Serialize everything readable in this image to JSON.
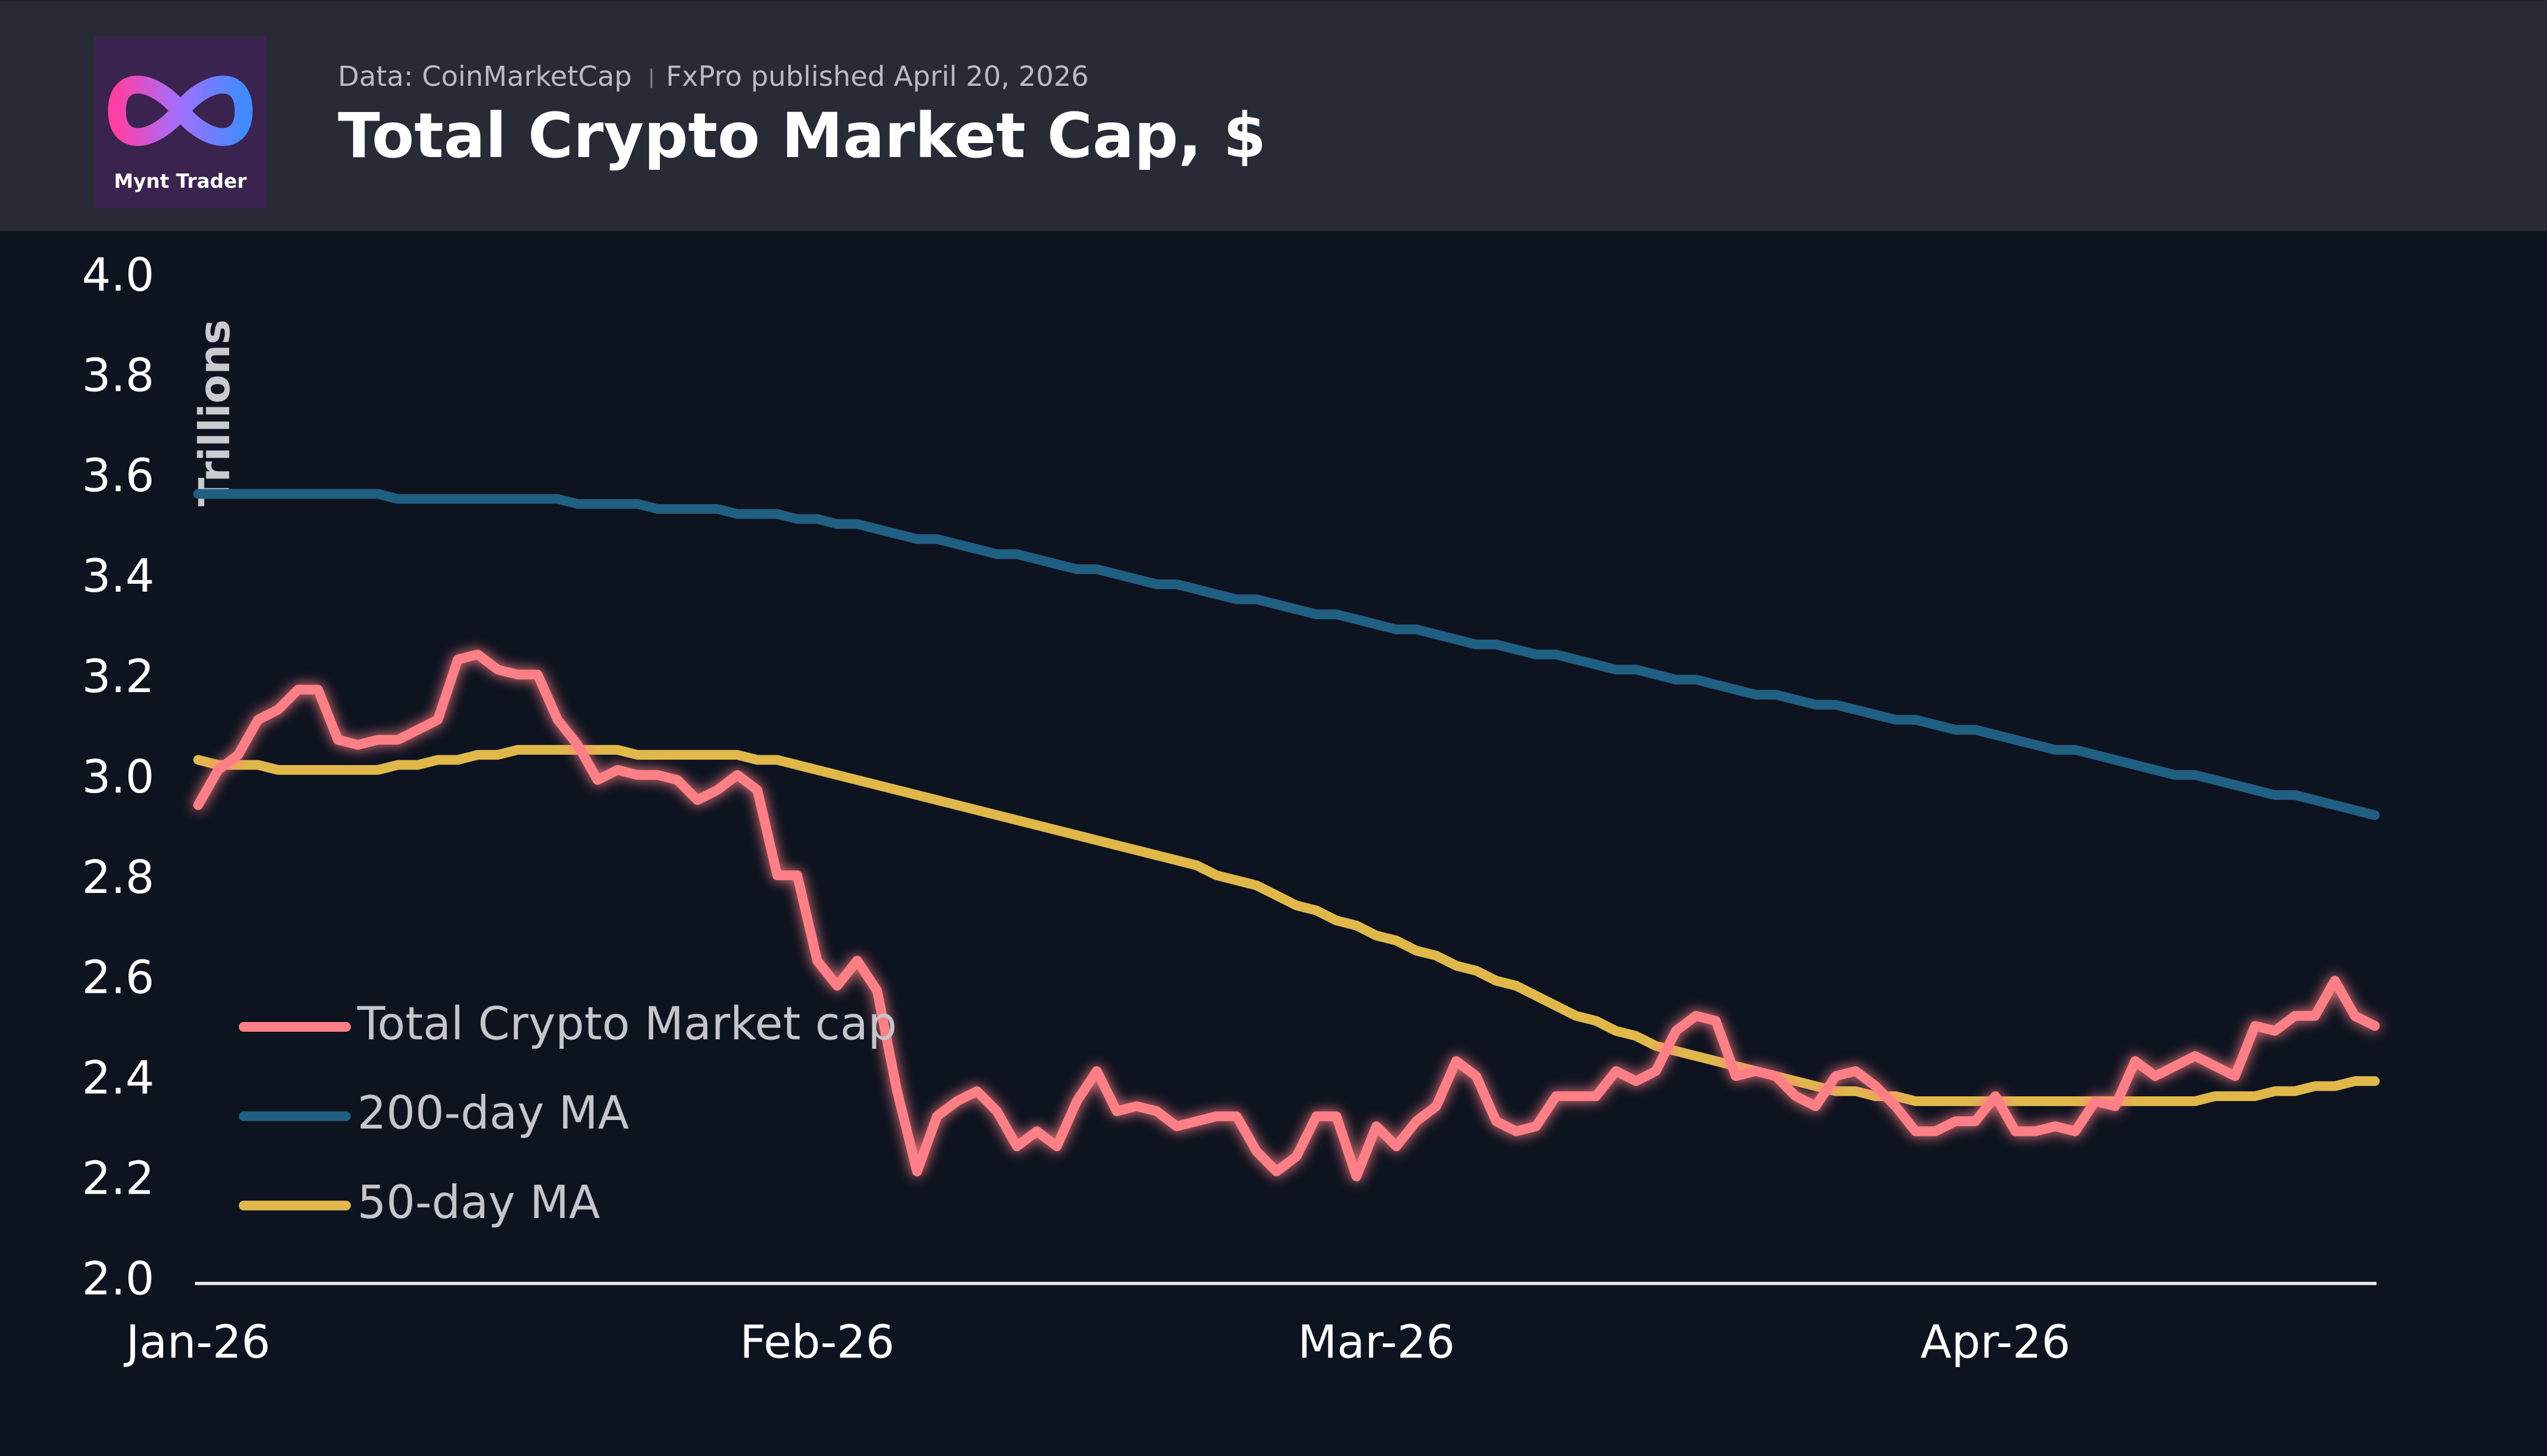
{
  "header": {
    "logo_text": "Mynt Trader",
    "source": "Data: CoinMarketCap",
    "published": "FxPro published April 20, 2026"
  },
  "chart_data": {
    "type": "line",
    "title": "Total Crypto Market Cap, $",
    "y_label": "Trillions",
    "categories": [
      "Jan-26",
      null,
      null,
      null,
      null,
      null,
      null,
      null,
      null,
      null,
      null,
      null,
      null,
      null,
      null,
      null,
      null,
      null,
      null,
      null,
      null,
      null,
      null,
      null,
      null,
      null,
      null,
      null,
      null,
      null,
      null,
      "Feb-26",
      null,
      null,
      null,
      null,
      null,
      null,
      null,
      null,
      null,
      null,
      null,
      null,
      null,
      null,
      null,
      null,
      null,
      null,
      null,
      null,
      null,
      null,
      null,
      null,
      null,
      null,
      null,
      "Mar-26",
      null,
      null,
      null,
      null,
      null,
      null,
      null,
      null,
      null,
      null,
      null,
      null,
      null,
      null,
      null,
      null,
      null,
      null,
      null,
      null,
      null,
      null,
      null,
      null,
      null,
      null,
      null,
      null,
      null,
      null,
      "Apr-26",
      null,
      null,
      null,
      null,
      null,
      null,
      null,
      null,
      null,
      null,
      null,
      null,
      null,
      null,
      null,
      null,
      null,
      null,
      null
    ],
    "series": [
      {
        "name": "Total Crypto Market cap",
        "color": "#ff7f86",
        "values": [
          2.95,
          3.02,
          3.05,
          3.12,
          3.14,
          3.18,
          3.18,
          3.08,
          3.07,
          3.08,
          3.08,
          3.1,
          3.12,
          3.24,
          3.25,
          3.22,
          3.21,
          3.21,
          3.12,
          3.07,
          3.0,
          3.02,
          3.01,
          3.01,
          3.0,
          2.96,
          2.98,
          3.01,
          2.98,
          2.81,
          2.81,
          2.64,
          2.59,
          2.64,
          2.58,
          2.38,
          2.22,
          2.33,
          2.36,
          2.38,
          2.34,
          2.27,
          2.3,
          2.27,
          2.36,
          2.42,
          2.34,
          2.35,
          2.34,
          2.31,
          2.32,
          2.33,
          2.33,
          2.26,
          2.22,
          2.25,
          2.33,
          2.33,
          2.21,
          2.31,
          2.27,
          2.32,
          2.35,
          2.44,
          2.41,
          2.32,
          2.3,
          2.31,
          2.37,
          2.37,
          2.37,
          2.42,
          2.4,
          2.42,
          2.5,
          2.53,
          2.52,
          2.41,
          2.42,
          2.41,
          2.37,
          2.35,
          2.41,
          2.42,
          2.39,
          2.35,
          2.3,
          2.3,
          2.32,
          2.32,
          2.37,
          2.3,
          2.3,
          2.31,
          2.3,
          2.36,
          2.35,
          2.44,
          2.41,
          2.43,
          2.45,
          2.43,
          2.41,
          2.51,
          2.5,
          2.53,
          2.53,
          2.6,
          2.53,
          2.51
        ]
      },
      {
        "name": "200-day MA",
        "color": "#1f5f82",
        "values": [
          3.57,
          3.57,
          3.57,
          3.57,
          3.57,
          3.57,
          3.57,
          3.57,
          3.57,
          3.57,
          3.56,
          3.56,
          3.56,
          3.56,
          3.56,
          3.56,
          3.56,
          3.56,
          3.56,
          3.55,
          3.55,
          3.55,
          3.55,
          3.54,
          3.54,
          3.54,
          3.54,
          3.53,
          3.53,
          3.53,
          3.52,
          3.52,
          3.51,
          3.51,
          3.5,
          3.49,
          3.48,
          3.48,
          3.47,
          3.46,
          3.45,
          3.45,
          3.44,
          3.43,
          3.42,
          3.42,
          3.41,
          3.4,
          3.39,
          3.39,
          3.38,
          3.37,
          3.36,
          3.36,
          3.35,
          3.34,
          3.33,
          3.33,
          3.32,
          3.31,
          3.3,
          3.3,
          3.29,
          3.28,
          3.27,
          3.27,
          3.26,
          3.25,
          3.25,
          3.24,
          3.23,
          3.22,
          3.22,
          3.21,
          3.2,
          3.2,
          3.19,
          3.18,
          3.17,
          3.17,
          3.16,
          3.15,
          3.15,
          3.14,
          3.13,
          3.12,
          3.12,
          3.11,
          3.1,
          3.1,
          3.09,
          3.08,
          3.07,
          3.06,
          3.06,
          3.05,
          3.04,
          3.03,
          3.02,
          3.01,
          3.01,
          3.0,
          2.99,
          2.98,
          2.97,
          2.97,
          2.96,
          2.95,
          2.94,
          2.93
        ]
      },
      {
        "name": "50-day MA",
        "color": "#e0b84a",
        "values": [
          3.04,
          3.03,
          3.03,
          3.03,
          3.02,
          3.02,
          3.02,
          3.02,
          3.02,
          3.02,
          3.03,
          3.03,
          3.04,
          3.04,
          3.05,
          3.05,
          3.06,
          3.06,
          3.06,
          3.06,
          3.06,
          3.06,
          3.05,
          3.05,
          3.05,
          3.05,
          3.05,
          3.05,
          3.04,
          3.04,
          3.03,
          3.02,
          3.01,
          3.0,
          2.99,
          2.98,
          2.97,
          2.96,
          2.95,
          2.94,
          2.93,
          2.92,
          2.91,
          2.9,
          2.89,
          2.88,
          2.87,
          2.86,
          2.85,
          2.84,
          2.83,
          2.81,
          2.8,
          2.79,
          2.77,
          2.75,
          2.74,
          2.72,
          2.71,
          2.69,
          2.68,
          2.66,
          2.65,
          2.63,
          2.62,
          2.6,
          2.59,
          2.57,
          2.55,
          2.53,
          2.52,
          2.5,
          2.49,
          2.47,
          2.46,
          2.45,
          2.44,
          2.43,
          2.42,
          2.41,
          2.4,
          2.39,
          2.38,
          2.38,
          2.37,
          2.37,
          2.36,
          2.36,
          2.36,
          2.36,
          2.36,
          2.36,
          2.36,
          2.36,
          2.36,
          2.36,
          2.36,
          2.36,
          2.36,
          2.36,
          2.36,
          2.37,
          2.37,
          2.37,
          2.38,
          2.38,
          2.39,
          2.39,
          2.4,
          2.4
        ]
      }
    ],
    "ylim": [
      2,
      4
    ],
    "yticks": [
      {
        "value": 2,
        "label": "2.0"
      },
      2.2,
      2.4,
      2.6,
      2.8,
      {
        "value": 3,
        "label": "3.0"
      },
      3.2,
      3.4,
      3.6,
      3.8,
      {
        "value": 4,
        "label": "4.0"
      }
    ],
    "grid": false,
    "legend": "lower left"
  }
}
